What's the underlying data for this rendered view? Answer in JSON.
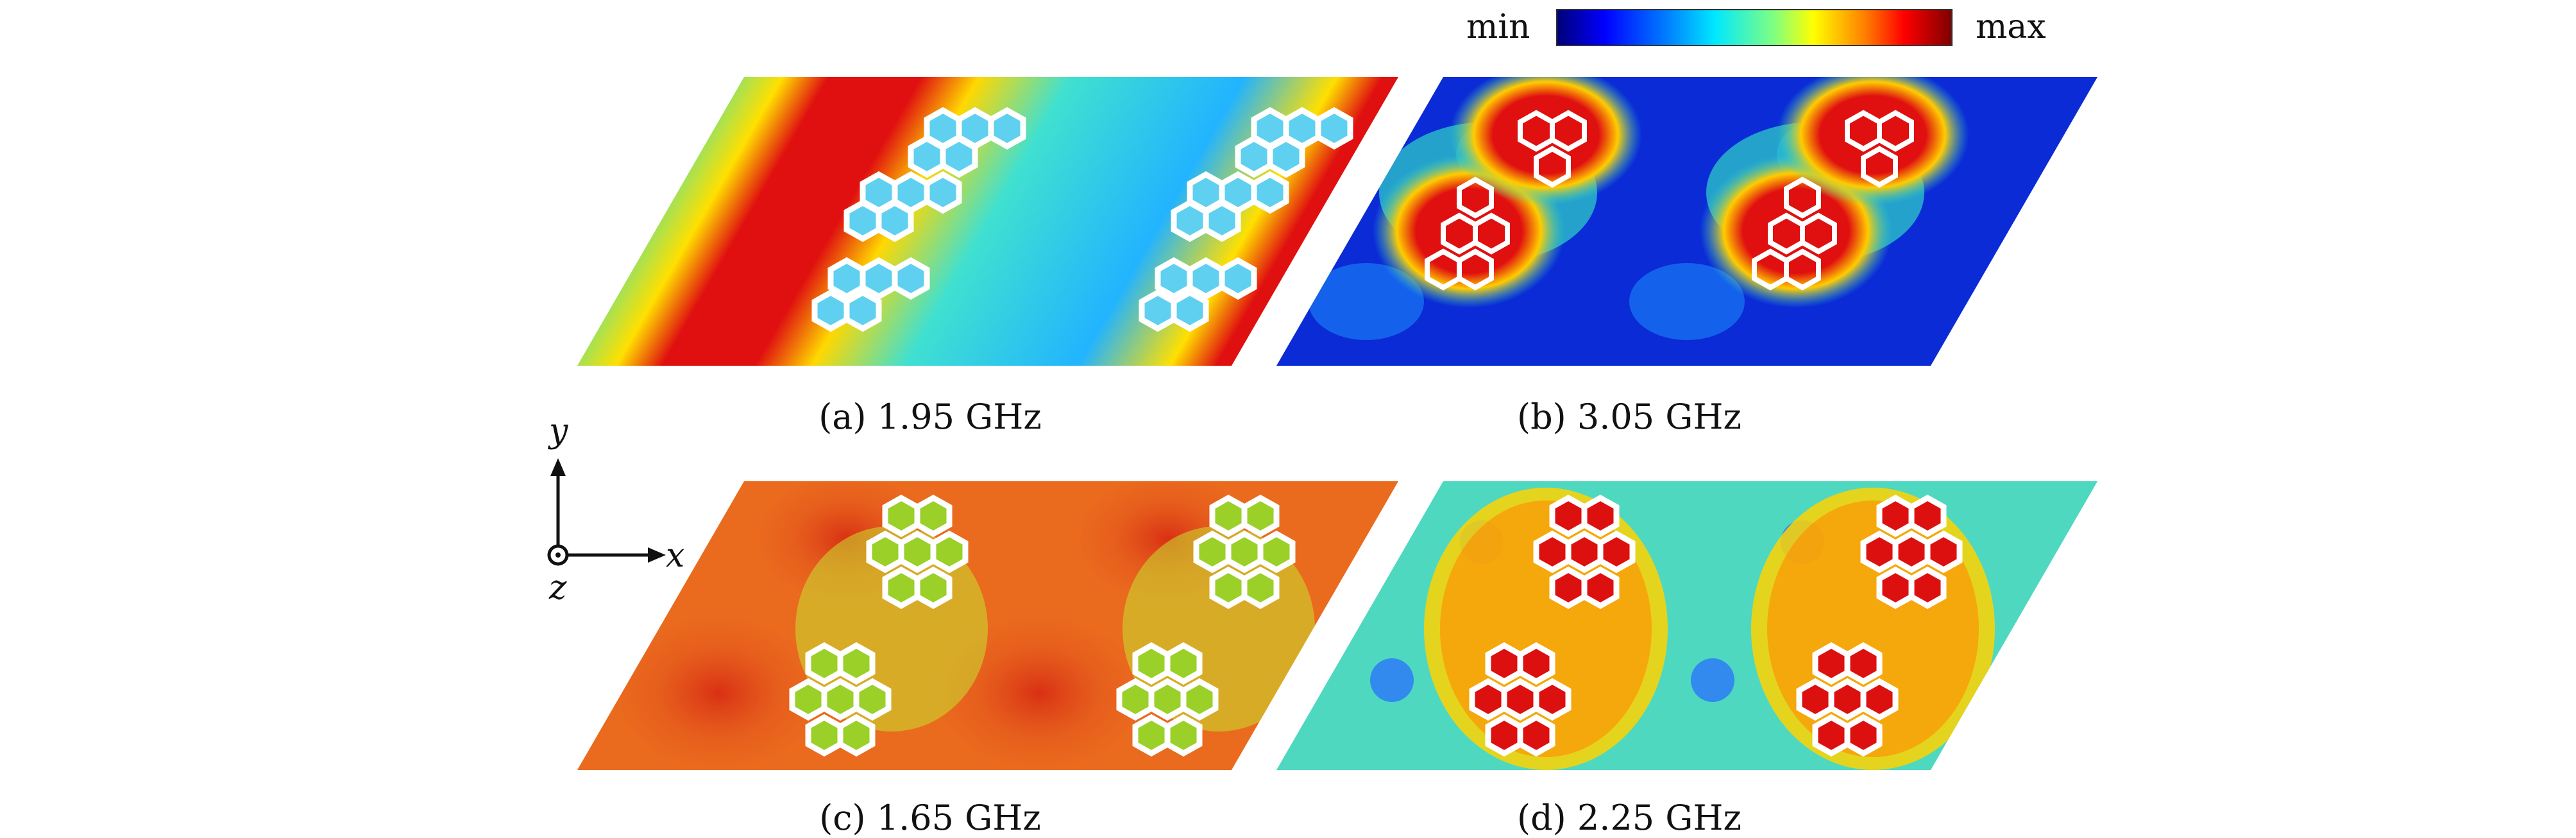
{
  "colorbar": {
    "min_label": "min",
    "max_label": "max"
  },
  "panels": [
    {
      "id": "a",
      "caption": "(a) 1.95 GHz",
      "scheme": "band"
    },
    {
      "id": "b",
      "caption": "(b) 3.05 GHz",
      "scheme": "blue-hot"
    },
    {
      "id": "c",
      "caption": "(c) 1.65 GHz",
      "scheme": "warm"
    },
    {
      "id": "d",
      "caption": "(d) 2.25 GHz",
      "scheme": "cyan-hot"
    }
  ],
  "axes": {
    "y": "y",
    "x": "x",
    "z": "z"
  }
}
